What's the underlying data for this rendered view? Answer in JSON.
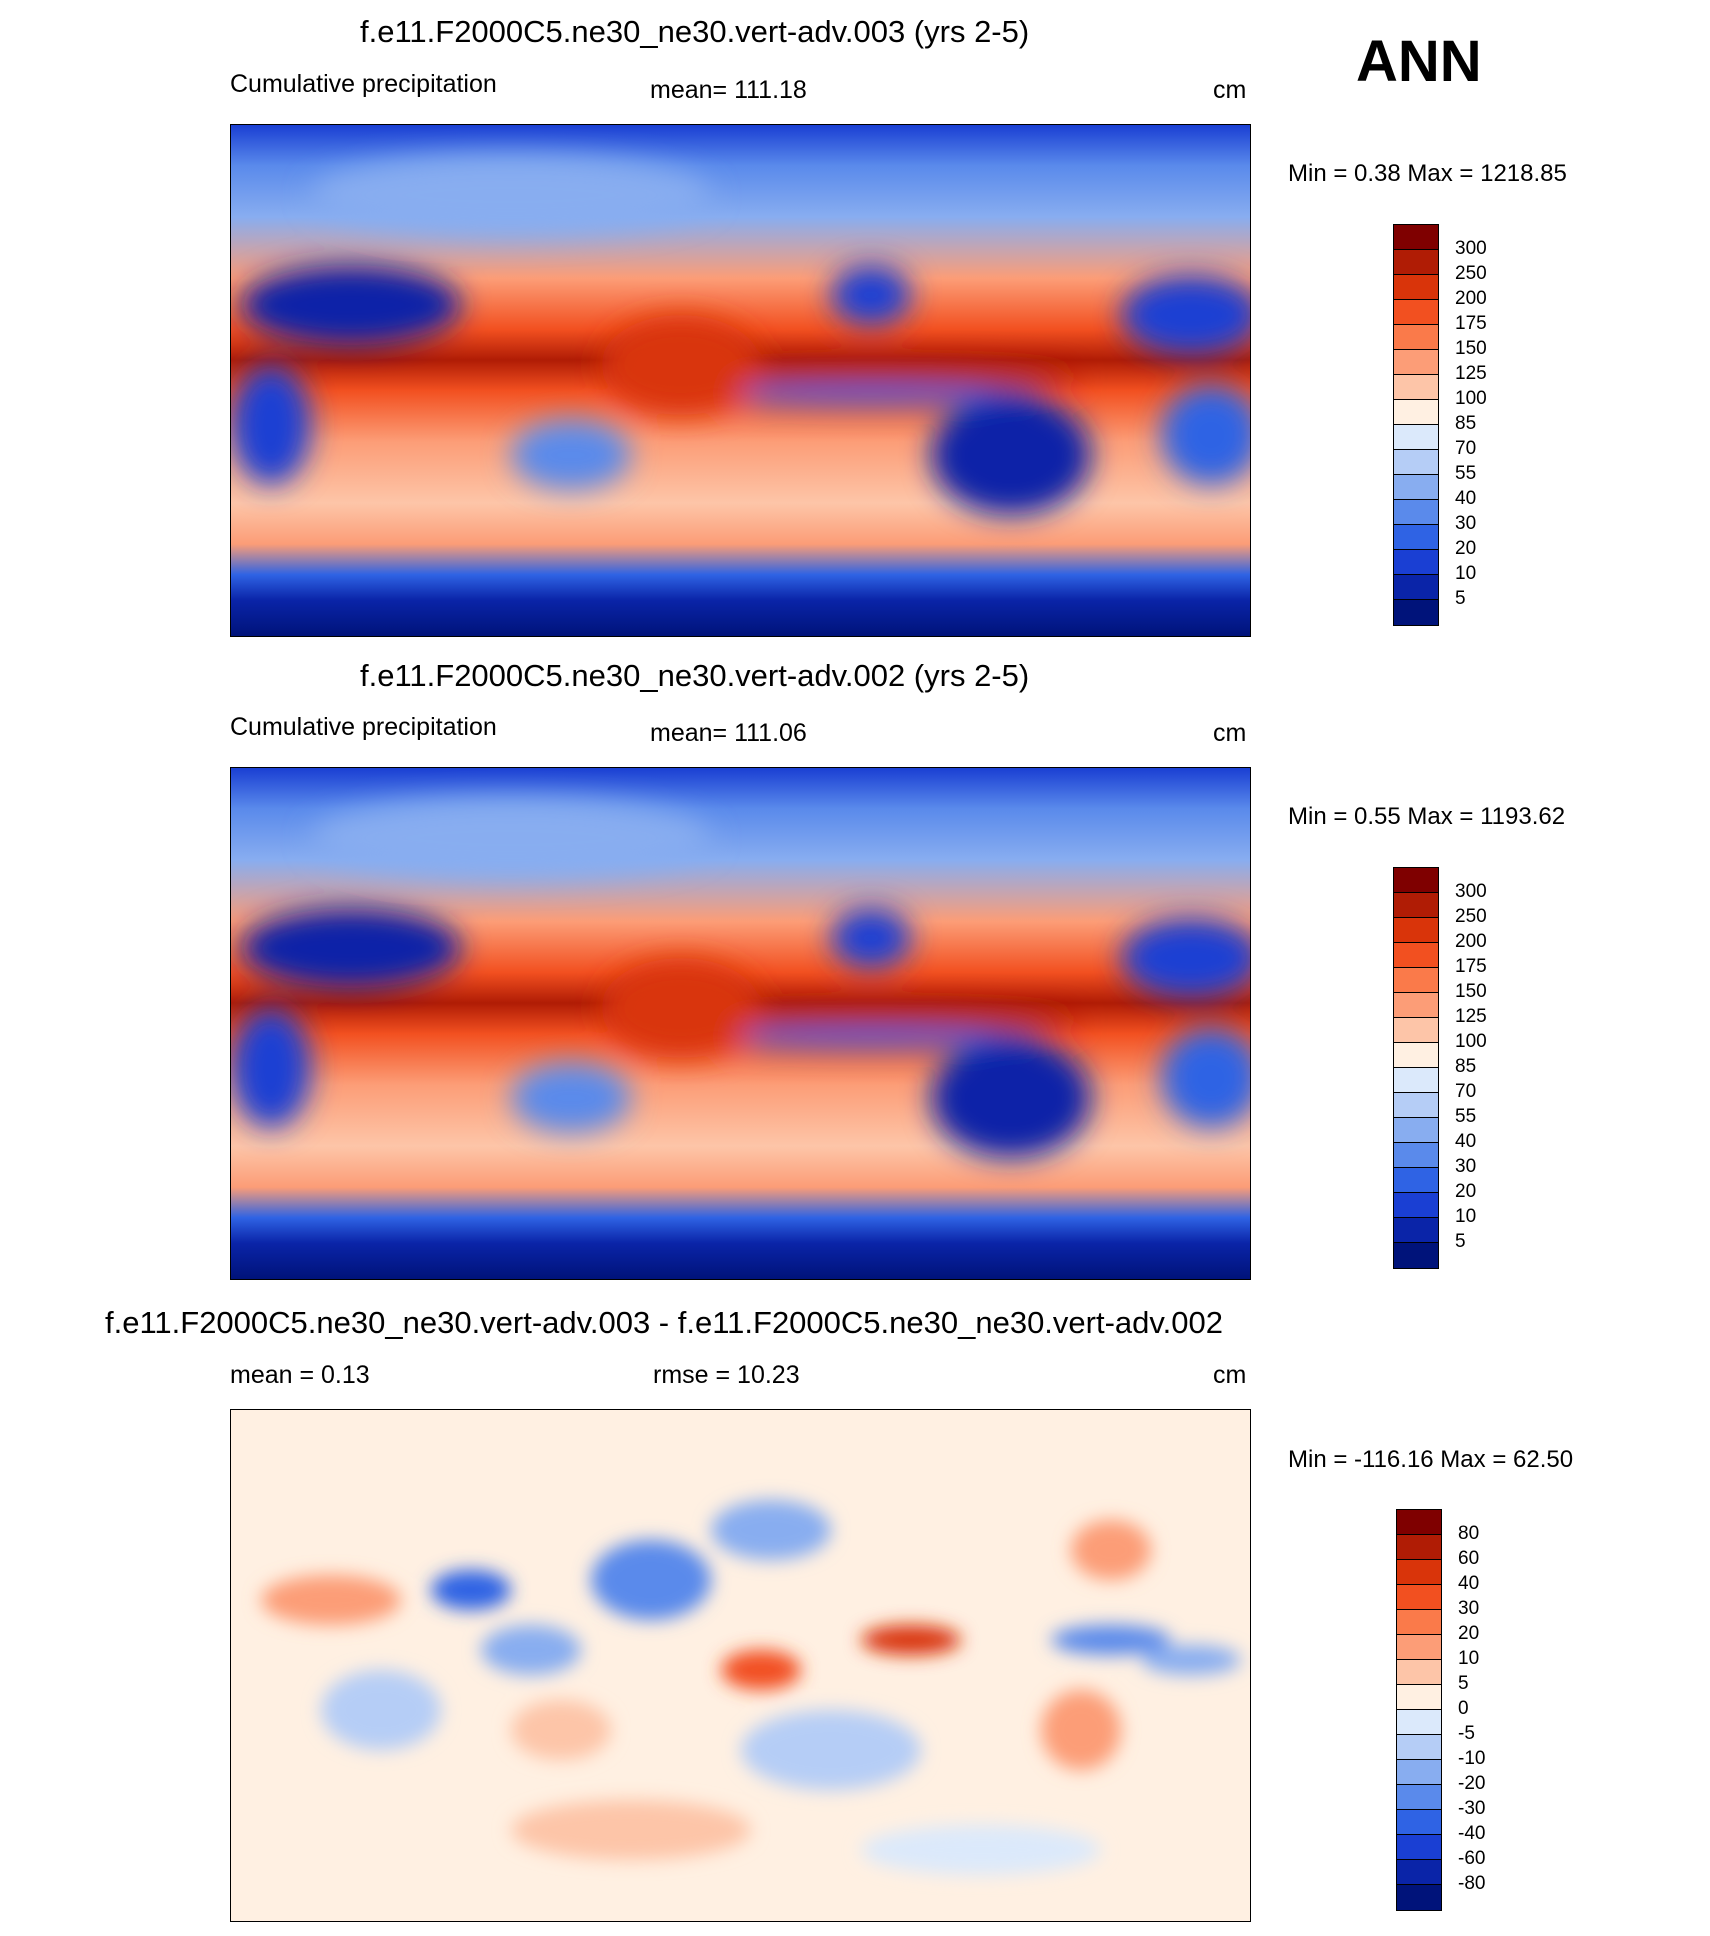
{
  "season": "ANN",
  "panels": [
    {
      "title": "f.e11.F2000C5.ne30_ne30.vert-adv.003 (yrs 2-5)",
      "left_label": "Cumulative precipitation",
      "center_label": "mean= 111.18",
      "units": "cm",
      "minmax": "Min =    0.38 Max = 1218.85",
      "colorbar": {
        "labels": [
          "300",
          "250",
          "200",
          "175",
          "150",
          "125",
          "100",
          "85",
          "70",
          "55",
          "40",
          "30",
          "20",
          "10",
          "5"
        ],
        "colors": [
          "#7f0000",
          "#b01c05",
          "#d9340a",
          "#f25020",
          "#fa7a4a",
          "#fc9d77",
          "#fdc5a8",
          "#fff0e2",
          "#dbe9fb",
          "#b5cdf6",
          "#88adf0",
          "#5a8aeb",
          "#2f63e4",
          "#1a3fd3",
          "#0a24a8",
          "#00137a"
        ]
      }
    },
    {
      "title": "f.e11.F2000C5.ne30_ne30.vert-adv.002 (yrs 2-5)",
      "left_label": "Cumulative precipitation",
      "center_label": "mean= 111.06",
      "units": "cm",
      "minmax": "Min =    0.55 Max = 1193.62",
      "colorbar": {
        "labels": [
          "300",
          "250",
          "200",
          "175",
          "150",
          "125",
          "100",
          "85",
          "70",
          "55",
          "40",
          "30",
          "20",
          "10",
          "5"
        ],
        "colors": [
          "#7f0000",
          "#b01c05",
          "#d9340a",
          "#f25020",
          "#fa7a4a",
          "#fc9d77",
          "#fdc5a8",
          "#fff0e2",
          "#dbe9fb",
          "#b5cdf6",
          "#88adf0",
          "#5a8aeb",
          "#2f63e4",
          "#1a3fd3",
          "#0a24a8",
          "#00137a"
        ]
      }
    },
    {
      "title": "f.e11.F2000C5.ne30_ne30.vert-adv.003 - f.e11.F2000C5.ne30_ne30.vert-adv.002",
      "left_label": "mean =   0.13",
      "center_label": "rmse =  10.23",
      "units": "cm",
      "minmax": "Min = -116.16 Max =  62.50",
      "colorbar": {
        "labels": [
          "80",
          "60",
          "40",
          "30",
          "20",
          "10",
          "5",
          "0",
          "-5",
          "-10",
          "-20",
          "-30",
          "-40",
          "-60",
          "-80"
        ],
        "colors": [
          "#7f0000",
          "#b01c05",
          "#d9340a",
          "#f25020",
          "#fa7a4a",
          "#fc9d77",
          "#fdc5a8",
          "#fff0e2",
          "#dbe9fb",
          "#b5cdf6",
          "#88adf0",
          "#5a8aeb",
          "#2f63e4",
          "#1a3fd3",
          "#0a24a8",
          "#00137a"
        ]
      }
    }
  ]
}
